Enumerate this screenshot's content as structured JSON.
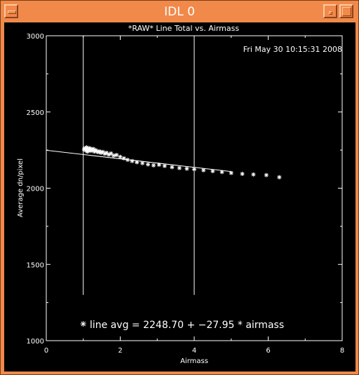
{
  "window": {
    "title": "IDL 0",
    "accent_color": "#f0894a",
    "icons": [
      "window-menu-icon",
      "minimize-icon",
      "maximize-icon"
    ]
  },
  "plot": {
    "timestamp": "Fri May 30 10:15:31 2008",
    "fit_label": "line avg = 2248.70 + −27.95 * airmass",
    "background": "#000000",
    "foreground": "#ffffff"
  },
  "chart_data": {
    "type": "scatter",
    "title": "*RAW* Line Total vs. Airmass",
    "xlabel": "Airmass",
    "ylabel": "Average dn/pixel",
    "xlim": [
      0,
      8
    ],
    "ylim": [
      1000,
      3000
    ],
    "xticks": [
      0,
      2,
      4,
      6,
      8
    ],
    "yticks": [
      1000,
      1500,
      2000,
      2500,
      3000
    ],
    "grid": false,
    "marker": "asterisk",
    "fit": {
      "intercept": 2248.7,
      "slope": -27.95,
      "x_range": [
        0,
        5.0
      ]
    },
    "vertical_lines": [
      1.0,
      4.0
    ],
    "label_marker": {
      "x": 1.0,
      "y": 1110
    },
    "series": [
      {
        "values": [
          [
            1.02,
            2255
          ],
          [
            1.05,
            2262
          ],
          [
            1.07,
            2248
          ],
          [
            1.09,
            2268
          ],
          [
            1.11,
            2240
          ],
          [
            1.13,
            2258
          ],
          [
            1.15,
            2250
          ],
          [
            1.17,
            2263
          ],
          [
            1.19,
            2245
          ],
          [
            1.21,
            2255
          ],
          [
            1.24,
            2248
          ],
          [
            1.27,
            2258
          ],
          [
            1.3,
            2240
          ],
          [
            1.33,
            2250
          ],
          [
            1.36,
            2244
          ],
          [
            1.4,
            2236
          ],
          [
            1.44,
            2242
          ],
          [
            1.48,
            2232
          ],
          [
            1.53,
            2238
          ],
          [
            1.58,
            2226
          ],
          [
            1.63,
            2232
          ],
          [
            1.69,
            2220
          ],
          [
            1.75,
            2228
          ],
          [
            1.82,
            2214
          ],
          [
            1.9,
            2218
          ],
          [
            2.0,
            2206
          ],
          [
            2.1,
            2196
          ],
          [
            2.2,
            2186
          ],
          [
            2.32,
            2178
          ],
          [
            2.45,
            2170
          ],
          [
            2.6,
            2164
          ],
          [
            2.75,
            2156
          ],
          [
            2.9,
            2150
          ],
          [
            3.05,
            2154
          ],
          [
            3.2,
            2146
          ],
          [
            3.4,
            2138
          ],
          [
            3.6,
            2132
          ],
          [
            3.8,
            2128
          ],
          [
            4.0,
            2124
          ],
          [
            4.25,
            2118
          ],
          [
            4.5,
            2112
          ],
          [
            4.75,
            2106
          ],
          [
            5.0,
            2100
          ],
          [
            5.3,
            2094
          ],
          [
            5.6,
            2090
          ],
          [
            5.95,
            2086
          ],
          [
            6.3,
            2072
          ]
        ]
      }
    ]
  }
}
